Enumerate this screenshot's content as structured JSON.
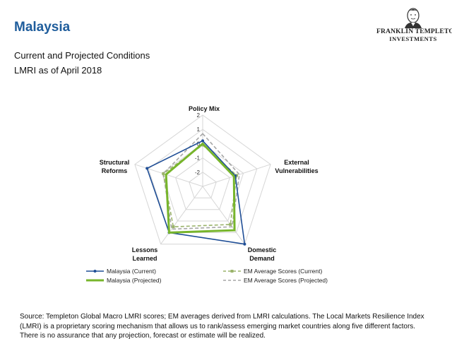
{
  "header": {
    "title": "Malaysia",
    "subtitle_line1": "Current and Projected Conditions",
    "subtitle_line2": "LMRI as of April 2018"
  },
  "brand": {
    "name": "FRANKLIN TEMPLETON",
    "sub": "INVESTMENTS",
    "icon": "portrait-logo"
  },
  "footnote": "Source: Templeton Global Macro LMRI scores; EM averages derived from LMRI calculations. The Local Markets Resilience Index (LMRI) is a proprietary scoring mechanism that allows us to rank/assess emerging market countries along five different factors. There is no assurance that any projection, forecast or estimate will be realized.",
  "chart_data": {
    "type": "radar",
    "axes": [
      {
        "line1": "Policy Mix",
        "line2": ""
      },
      {
        "line1": "External",
        "line2": "Vulnerabilities"
      },
      {
        "line1": "Domestic",
        "line2": "Demand"
      },
      {
        "line1": "Lessons",
        "line2": "Learned"
      },
      {
        "line1": "Structural",
        "line2": "Reforms"
      }
    ],
    "range": [
      -3,
      2
    ],
    "ticks": [
      2,
      1,
      0,
      -1,
      -2
    ],
    "tick_labels": [
      "2",
      "1",
      "0",
      "-1",
      "-2"
    ],
    "series": [
      {
        "name": "Malaysia (Current)",
        "values": [
          0.2,
          -0.6,
          2.0,
          1.0,
          1.1
        ],
        "color": "#1f4e96",
        "style": "solid-thin-marker"
      },
      {
        "name": "Malaysia (Projected)",
        "values": [
          0.0,
          -0.7,
          0.8,
          1.0,
          -0.3
        ],
        "color": "#77b52b",
        "style": "solid-thick"
      },
      {
        "name": "EM Average Scores (Current)",
        "values": [
          -0.1,
          -0.5,
          0.3,
          0.5,
          -0.1
        ],
        "color": "#9ab36a",
        "style": "dashed-marker"
      },
      {
        "name": "EM Average Scores (Projected)",
        "values": [
          0.7,
          -0.3,
          0.5,
          0.7,
          -0.1
        ],
        "color": "#a6a6a6",
        "style": "dashed"
      }
    ],
    "legend_position": "bottom"
  }
}
